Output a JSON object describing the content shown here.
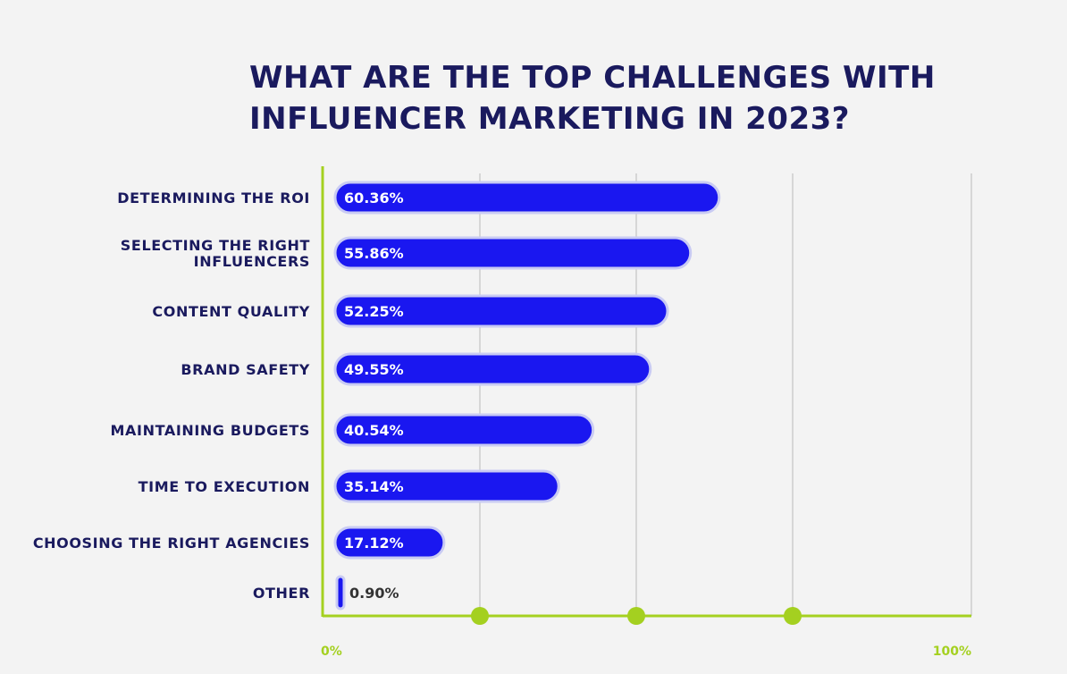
{
  "chart_data": {
    "type": "bar",
    "orientation": "horizontal",
    "title": "WHAT ARE THE TOP CHALLENGES WITH INFLUENCER MARKETING IN 2023?",
    "categories": [
      "DETERMINING THE ROI",
      "SELECTING THE RIGHT INFLUENCERS",
      "CONTENT QUALITY",
      "BRAND SAFETY",
      "MAINTAINING BUDGETS",
      "TIME TO EXECUTION",
      "CHOOSING THE RIGHT AGENCIES",
      "OTHER"
    ],
    "values": [
      60.36,
      55.86,
      52.25,
      49.55,
      40.54,
      35.14,
      17.12,
      0.9
    ],
    "value_labels": [
      "60.36%",
      "55.86%",
      "52.25%",
      "49.55%",
      "40.54%",
      "35.14%",
      "17.12%",
      "0.90%"
    ],
    "xlim": [
      0,
      100
    ],
    "x_tick_labels": [
      "0%",
      "100%"
    ],
    "grid": true,
    "colors": {
      "bar_fill": "#1a17f0",
      "bar_outline": "#c9cbf3",
      "axis": "#a4d020",
      "grid": "#cccccc",
      "text": "#1a1a5e",
      "background": "#f3f3f3"
    }
  }
}
